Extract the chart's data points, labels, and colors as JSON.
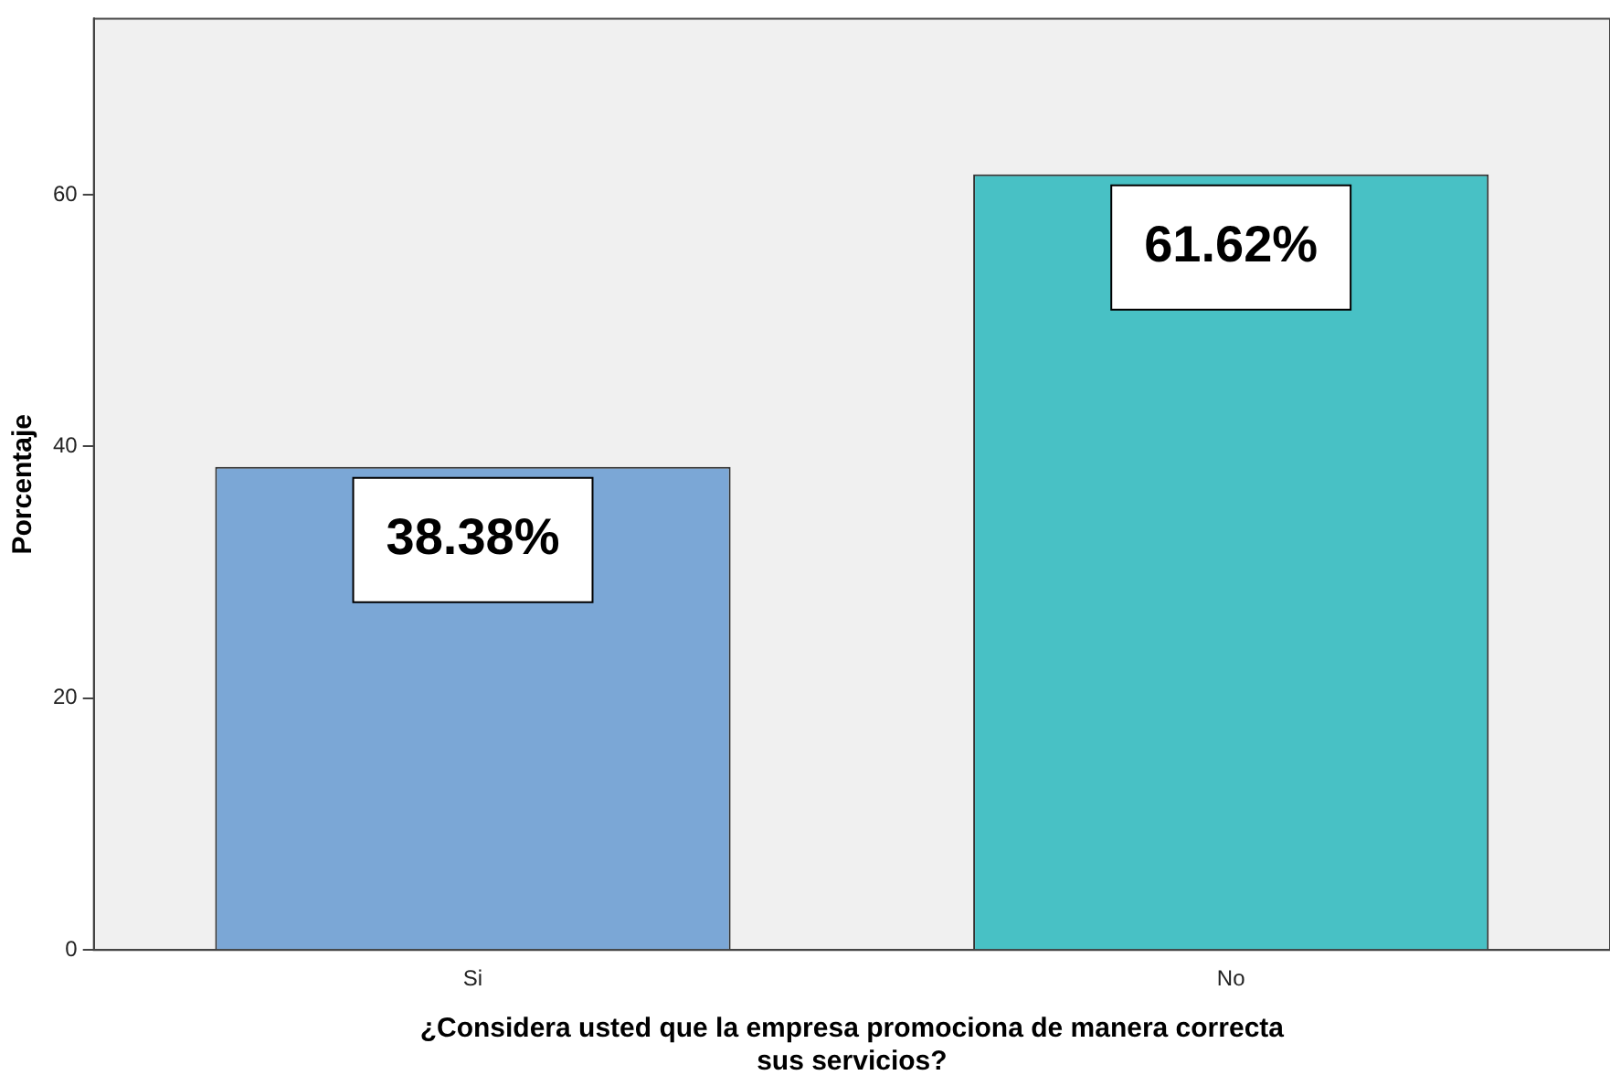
{
  "chart_data": {
    "type": "bar",
    "xlabel": "¿Considera usted que la empresa promociona de manera correcta sus servicios?",
    "ylabel": "Porcentaje",
    "categories": [
      "Si",
      "No"
    ],
    "values": [
      38.38,
      61.62
    ],
    "colors": [
      "#7ba7d6",
      "#48c1c5"
    ],
    "value_labels": [
      "38.38%",
      "61.62%"
    ],
    "ylim": [
      0,
      74
    ],
    "yticks": [
      0,
      20,
      40,
      60
    ],
    "grid": false,
    "legend": false
  }
}
